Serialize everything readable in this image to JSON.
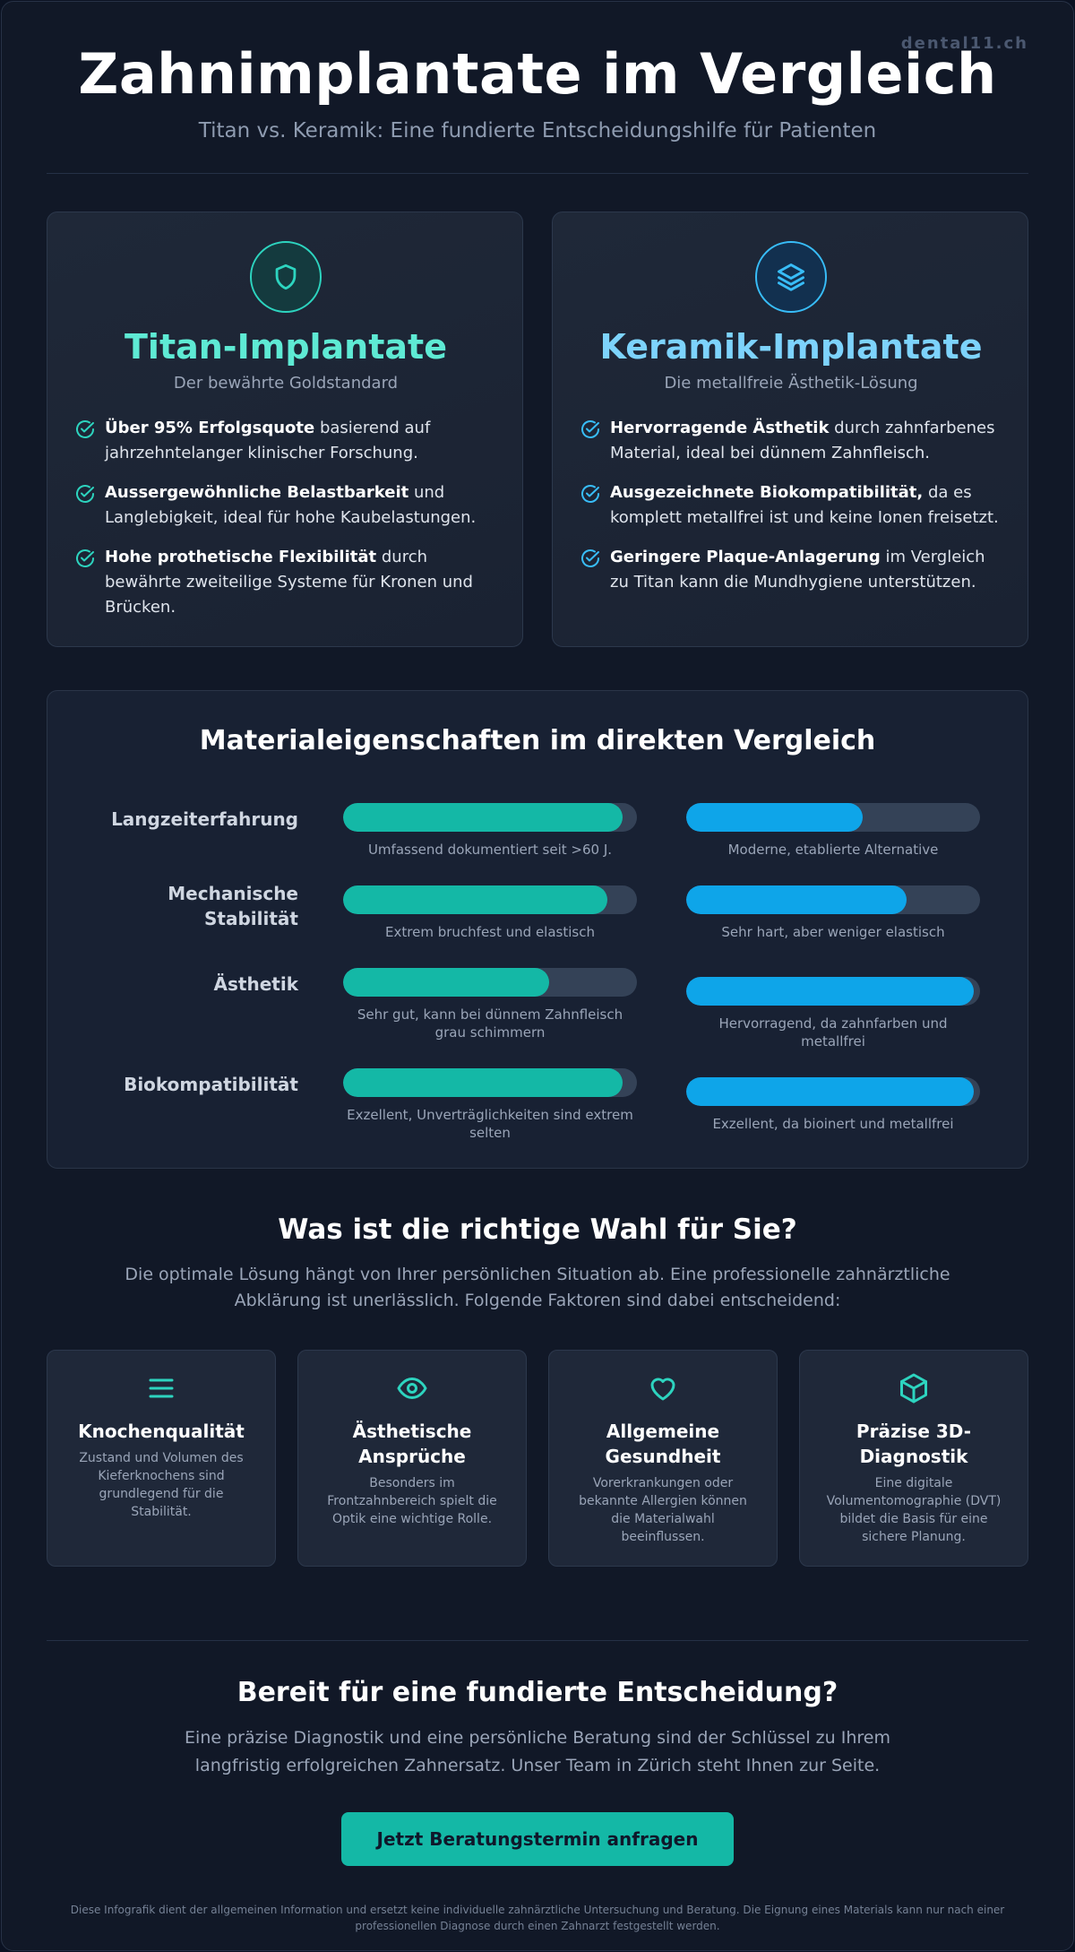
{
  "brand": "dental11.ch",
  "hero": {
    "title": "Zahnimplantate im Vergleich",
    "subtitle": "Titan vs. Keramik: Eine fundierte Entscheidungshilfe für Patienten"
  },
  "materials": [
    {
      "title": "Titan-Implantate",
      "tagline": "Der bewährte Goldstandard",
      "icon": "shield-icon",
      "color": "#2dd4bf",
      "points": [
        {
          "bold": "Über 95% Erfolgsquote",
          "text": " basierend auf jahrzehntelanger klinischer Forschung."
        },
        {
          "bold": "Aussergewöhnliche Belastbarkeit",
          "text": " und Langlebigkeit, ideal für hohe Kaubelastungen."
        },
        {
          "bold": "Hohe prothetische Flexibilität",
          "text": " durch bewährte zweiteilige Systeme für Kronen und Brücken."
        }
      ]
    },
    {
      "title": "Keramik-Implantate",
      "tagline": "Die metallfreie Ästhetik-Lösung",
      "icon": "layers-icon",
      "color": "#38bdf8",
      "points": [
        {
          "bold": "Hervorragende Ästhetik",
          "text": " durch zahnfarbenes Material, ideal bei dünnem Zahnfleisch."
        },
        {
          "bold": "Ausgezeichnete Biokompatibilität,",
          "text": " da es komplett metallfrei ist und keine Ionen freisetzt."
        },
        {
          "bold": "Geringere Plaque-Anlagerung",
          "text": " im Vergleich zu Titan kann die Mundhygiene unterstützen."
        }
      ]
    }
  ],
  "comparison": {
    "title": "Materialeigenschaften im direkten Vergleich",
    "rows": [
      {
        "label": "Langzeiterfahrung",
        "titan": {
          "value": 95,
          "note": "Umfassend dokumentiert seit >60 J."
        },
        "ceramic": {
          "value": 60,
          "note": "Moderne, etablierte Alternative"
        }
      },
      {
        "label": "Mechanische Stabilität",
        "titan": {
          "value": 90,
          "note": "Extrem bruchfest und elastisch"
        },
        "ceramic": {
          "value": 75,
          "note": "Sehr hart, aber weniger elastisch"
        }
      },
      {
        "label": "Ästhetik",
        "titan": {
          "value": 70,
          "note": "Sehr gut, kann bei dünnem Zahnfleisch grau schimmern"
        },
        "ceramic": {
          "value": 98,
          "note": "Hervorragend, da zahnfarben und metallfrei"
        }
      },
      {
        "label": "Biokompatibilität",
        "titan": {
          "value": 95,
          "note": "Exzellent, Unverträglichkeiten sind extrem selten"
        },
        "ceramic": {
          "value": 98,
          "note": "Exzellent, da bioinert und metallfrei"
        }
      }
    ]
  },
  "choice": {
    "title": "Was ist die richtige Wahl für Sie?",
    "intro_line1": "Die optimale Lösung hängt von Ihrer persönlichen Situation ab. Eine professionelle zahnärztliche",
    "intro_line2": "Abklärung ist unerlässlich. Folgende Faktoren sind dabei entscheidend:",
    "factors": [
      {
        "icon": "menu-lines-icon",
        "title": "Knochenqualität",
        "text": "Zustand und Volumen des Kieferknochens sind grundlegend für die Stabilität."
      },
      {
        "icon": "eye-icon",
        "title": "Ästhetische Ansprüche",
        "text": "Besonders im Frontzahnbereich spielt die Optik eine wichtige Rolle."
      },
      {
        "icon": "heart-icon",
        "title": "Allgemeine Gesundheit",
        "text": "Vorerkrankungen oder bekannte Allergien können die Materialwahl beeinflussen."
      },
      {
        "icon": "cube-icon",
        "title": "Präzise 3D-Diagnostik",
        "text": "Eine digitale Volumentomographie (DVT) bildet die Basis für eine sichere Planung."
      }
    ]
  },
  "cta": {
    "title": "Bereit für eine fundierte Entscheidung?",
    "text": "Eine präzise Diagnostik und eine persönliche Beratung sind der Schlüssel zu Ihrem langfristig erfolgreichen Zahnersatz. Unser Team in Zürich steht Ihnen zur Seite.",
    "button": "Jetzt Beratungstermin anfragen"
  },
  "disclaimer": "Diese Infografik dient der allgemeinen Information und ersetzt keine individuelle zahnärztliche Untersuchung und Beratung. Die Eignung eines Materials kann nur nach einer professionellen Diagnose durch einen Zahnarzt festgestellt werden."
}
